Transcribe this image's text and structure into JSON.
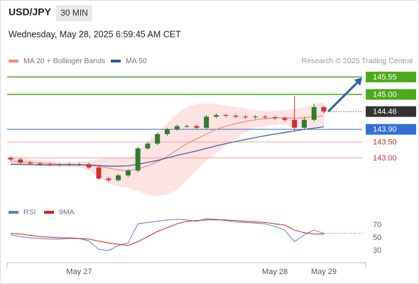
{
  "header": {
    "symbol": "USD/JPY",
    "timeframe": "30 MIN",
    "timestamp": "Wednesday, May 28, 2025 6:59:45 AM CET",
    "source": "Research © 2025 Trading Central"
  },
  "chart_data": [
    {
      "type": "candlestick",
      "categories": [
        null,
        null,
        null,
        null,
        null,
        null,
        null,
        "May 27",
        null,
        null,
        null,
        null,
        null,
        null,
        null,
        null,
        null,
        null,
        null,
        null,
        null,
        null,
        null,
        null,
        null,
        null,
        null,
        "May 28",
        null,
        null,
        null,
        null,
        "May 29"
      ],
      "open": [
        143.0,
        142.95,
        142.85,
        142.82,
        142.8,
        142.78,
        142.79,
        142.8,
        142.8,
        142.7,
        142.35,
        142.3,
        142.45,
        142.6,
        143.3,
        143.45,
        143.75,
        143.9,
        144.0,
        144.0,
        143.95,
        144.3,
        144.35,
        144.33,
        144.3,
        144.28,
        144.3,
        144.28,
        144.25,
        144.2,
        143.95,
        144.2,
        144.6
      ],
      "high": [
        143.05,
        143.0,
        142.9,
        142.87,
        142.85,
        142.84,
        142.85,
        142.85,
        142.85,
        142.75,
        142.4,
        142.5,
        142.65,
        143.35,
        143.5,
        143.8,
        143.95,
        144.05,
        144.05,
        144.05,
        144.35,
        144.4,
        144.4,
        144.38,
        144.35,
        144.35,
        144.35,
        144.33,
        144.3,
        144.95,
        144.3,
        144.7,
        144.65
      ],
      "low": [
        142.9,
        142.8,
        142.77,
        142.75,
        142.73,
        142.73,
        142.74,
        142.75,
        142.65,
        142.3,
        142.25,
        142.25,
        142.4,
        142.55,
        143.25,
        143.4,
        143.7,
        143.85,
        143.95,
        143.9,
        143.9,
        144.25,
        144.28,
        144.25,
        144.23,
        144.23,
        144.23,
        144.2,
        144.15,
        143.85,
        143.9,
        144.15,
        144.4
      ],
      "close": [
        142.95,
        142.85,
        142.82,
        142.8,
        142.78,
        142.79,
        142.8,
        142.8,
        142.7,
        142.35,
        142.3,
        142.45,
        142.6,
        143.3,
        143.45,
        143.75,
        143.9,
        144.0,
        144.0,
        143.95,
        144.3,
        144.35,
        144.33,
        144.3,
        144.28,
        144.3,
        144.28,
        144.25,
        144.2,
        143.95,
        144.2,
        144.6,
        144.46
      ],
      "up_color": "#2e7d32",
      "down_color": "#d32f2f",
      "series": [
        {
          "name": "MA 20 + Bollinger Bands",
          "color": "#f28b82",
          "band_color": "#fde3e1",
          "values": [
            142.9,
            142.88,
            142.86,
            142.84,
            142.82,
            142.8,
            142.8,
            142.79,
            142.78,
            142.74,
            142.68,
            142.62,
            142.6,
            142.65,
            142.75,
            142.88,
            143.05,
            143.25,
            143.45,
            143.6,
            143.75,
            143.9,
            144.0,
            144.08,
            144.15,
            144.2,
            144.24,
            144.26,
            144.27,
            144.25,
            144.26,
            144.3,
            144.33
          ],
          "upper": [
            143.05,
            143.0,
            142.95,
            142.92,
            142.9,
            142.88,
            142.88,
            142.88,
            142.9,
            142.95,
            143.0,
            143.0,
            142.98,
            143.2,
            143.5,
            143.8,
            144.1,
            144.4,
            144.6,
            144.7,
            144.72,
            144.7,
            144.65,
            144.6,
            144.55,
            144.5,
            144.48,
            144.48,
            144.5,
            144.55,
            144.6,
            144.7,
            144.75
          ],
          "lower": [
            142.75,
            142.75,
            142.75,
            142.75,
            142.74,
            142.73,
            142.72,
            142.7,
            142.6,
            142.4,
            142.2,
            142.1,
            142.05,
            141.95,
            141.85,
            141.8,
            141.85,
            142.0,
            142.3,
            142.6,
            142.9,
            143.15,
            143.4,
            143.6,
            143.8,
            143.95,
            144.0,
            144.05,
            144.05,
            143.95,
            143.95,
            143.98,
            144.0
          ]
        },
        {
          "name": "MA 50",
          "color": "#2e5c9a",
          "values": [
            142.8,
            142.8,
            142.79,
            142.78,
            142.78,
            142.78,
            142.78,
            142.78,
            142.77,
            142.76,
            142.74,
            142.74,
            142.75,
            142.8,
            142.86,
            142.92,
            143.0,
            143.08,
            143.15,
            143.22,
            143.3,
            143.38,
            143.45,
            143.52,
            143.58,
            143.64,
            143.7,
            143.75,
            143.8,
            143.85,
            143.9,
            143.94,
            143.98
          ]
        }
      ],
      "resistance": {
        "values": [
          145.55,
          145
        ],
        "value_labels": [
          "145.55",
          "145.00"
        ],
        "color": "#4caa1c"
      },
      "last_price": {
        "value": 144.46,
        "color": "#333333"
      },
      "pivot": {
        "value": 143.9,
        "label": "143.90",
        "color": "#2f6fd6"
      },
      "support": {
        "values": [
          143.5,
          143
        ],
        "value_labels": [
          "143.50",
          "143.00"
        ],
        "color": "#d32f2f"
      },
      "ylim": [
        141.6,
        145.85
      ]
    },
    {
      "type": "line",
      "series": [
        {
          "name": "RSI",
          "color": "#5b7fd6",
          "values": [
            55,
            52,
            50,
            49,
            48,
            48,
            49,
            49,
            45,
            32,
            30,
            38,
            42,
            72,
            74,
            76,
            78,
            79,
            78,
            76,
            80,
            79,
            77,
            75,
            74,
            73,
            72,
            68,
            62,
            44,
            55,
            62,
            57
          ]
        },
        {
          "name": "9MA",
          "color": "#e01b1b",
          "values": [
            57,
            56,
            54,
            52,
            51,
            50,
            50,
            49,
            48,
            45,
            42,
            40,
            38,
            44,
            52,
            60,
            66,
            72,
            76,
            77,
            78,
            78,
            78,
            77,
            76,
            75,
            74,
            72,
            70,
            62,
            58,
            56,
            56
          ]
        }
      ],
      "ylim": [
        15,
        85
      ],
      "yticks": [
        70,
        50,
        30
      ]
    }
  ]
}
